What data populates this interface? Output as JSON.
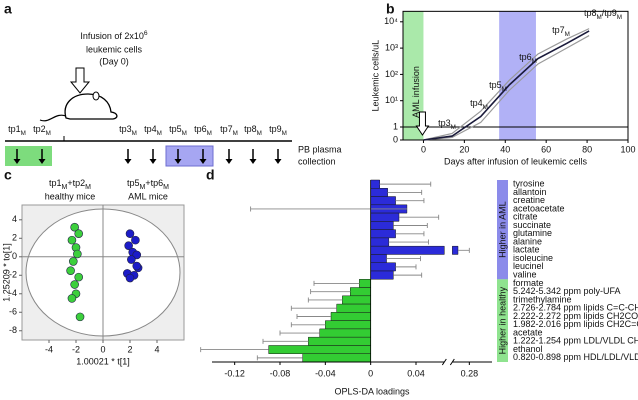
{
  "panel_labels": [
    "a",
    "b",
    "c",
    "d"
  ],
  "timeline": {
    "infusion": {
      "first_line": [
        "Infusion of 2x10",
        "6"
      ],
      "lines": [
        "leukemic cells",
        "(Day 0)"
      ]
    },
    "timepoints": [
      [
        "tp1",
        "M"
      ],
      [
        "tp2",
        "M"
      ],
      [
        "tp3",
        "M"
      ],
      [
        "tp4",
        "M"
      ],
      [
        "tp5",
        "M"
      ],
      [
        "tp6",
        "M"
      ],
      [
        "tp7",
        "M"
      ],
      [
        "tp8",
        "M"
      ],
      [
        "tp9",
        "M"
      ]
    ],
    "collection": [
      "PB plasma",
      "collection"
    ]
  },
  "chart_data": [
    {
      "type": "line",
      "xlabel": "Days after infusion of leukemic cells",
      "ylabel": "Leukemic cells/uL",
      "x": [
        0,
        14,
        28,
        42,
        56,
        70,
        81
      ],
      "series": [
        {
          "color": "#9a9a9a",
          "values": [
            0,
            0.2,
            1.5,
            25,
            250,
            1000,
            3000
          ]
        },
        {
          "color": "#9a9a9a",
          "values": [
            0,
            0.5,
            4,
            60,
            600,
            2200,
            5500
          ]
        },
        {
          "color": "#1a1a3a",
          "values": [
            0,
            0.3,
            2.5,
            40,
            400,
            1500,
            4500
          ]
        }
      ],
      "xlim": [
        -10,
        100
      ],
      "xticks": [
        0,
        20,
        40,
        60,
        80,
        100
      ],
      "ylim": [
        0,
        25000
      ],
      "yscale": "log",
      "yticks": [
        0,
        1,
        {
          "value": 10,
          "label": "10¹"
        },
        {
          "value": 100,
          "label": "10²"
        },
        {
          "value": 1000,
          "label": "10³"
        },
        {
          "value": 10000,
          "label": "10⁴"
        }
      ],
      "hline": 1,
      "bands": [
        {
          "xlim": [
            -10,
            0
          ],
          "color": "#9be59b"
        },
        {
          "xlim": [
            37,
            55
          ],
          "color": "#a3a3f5"
        }
      ],
      "arrow_label": "AML infusion",
      "annotations": [
        [
          "tp3",
          "M"
        ],
        [
          "tp4",
          "M"
        ],
        [
          "tp5",
          "M"
        ],
        [
          "tp6",
          "M"
        ],
        [
          "tp7",
          "M"
        ],
        [
          "tp8",
          "M",
          "/tp9",
          "M"
        ]
      ]
    },
    {
      "type": "scatter",
      "xlabel": "1.00021 * t[1]",
      "ylabel": "1.25209 * to[1]",
      "xlim": [
        -6,
        6
      ],
      "xticks": [
        -4,
        -2,
        0,
        2,
        4
      ],
      "ylim": [
        -9,
        5.6
      ],
      "yticks": [
        -8,
        -6,
        -4,
        -2,
        0,
        2,
        4
      ],
      "series": [
        {
          "name": "healthy mice",
          "header": [
            "tp1",
            "M",
            "+tp2",
            "M"
          ],
          "color": "#3ccf3c",
          "x": [
            -2.1,
            -1.8,
            -2.3,
            -2.0,
            -1.9,
            -2.2,
            -2.4,
            -1.8,
            -2.1,
            -2.0,
            -2.3,
            -1.7
          ],
          "values": [
            3.2,
            2.5,
            1.8,
            1.0,
            0.3,
            -0.5,
            -1.5,
            -2.2,
            -3.0,
            -4.0,
            -4.5,
            -6.5
          ]
        },
        {
          "name": "AML mice",
          "header": [
            "tp5",
            "M",
            "+tp6",
            "M"
          ],
          "color": "#1c1cc8",
          "x": [
            2.0,
            2.4,
            1.9,
            2.2,
            2.5,
            2.1,
            2.6,
            1.8,
            2.3,
            2.0,
            2.5
          ],
          "values": [
            2.5,
            1.8,
            1.2,
            0.5,
            0.2,
            -0.3,
            -1.2,
            -1.8,
            -2.0,
            -2.3,
            -1.0
          ]
        }
      ]
    },
    {
      "type": "hbar",
      "xlabel": "OPLS-DA loadings",
      "xlim": [
        -0.14,
        0.3
      ],
      "xticks": [
        -0.12,
        -0.08,
        -0.04,
        0,
        0.04,
        0.28
      ],
      "xbreak": [
        0.065,
        0.265
      ],
      "series": [
        {
          "name": "Higher in AML",
          "color": "#2b2bd9",
          "categories": [
            "tyrosine",
            "allantoin",
            "creatine",
            "acetoacetate",
            "citrate",
            "succinate",
            "glutamine",
            "alanine",
            "lactate",
            "isoleucine",
            "leucinel",
            "valine"
          ],
          "values": [
            0.008,
            0.015,
            0.022,
            0.032,
            0.025,
            0.02,
            0.022,
            0.016,
            0.27,
            0.014,
            0.022,
            0.02
          ],
          "errors": [
            0.045,
            0.03,
            0.025,
            0.055,
            0.035,
            0.03,
            0.025,
            0.035,
            0.01,
            0.03,
            0.018,
            0.025
          ]
        },
        {
          "name": "Higher in healthy",
          "color": "#33cc33",
          "categories": [
            "formate",
            "5.242-5.342 ppm poly-UFA",
            "trimethylamine",
            "2.726-2.784 ppm lipids C=C-CH2-C=C",
            "2.222-2.272 ppm lipids CH2CO",
            "1.982-2.016 ppm lipids CH2C=C",
            "acetate",
            "1.222-1.254 ppm LDL/VLDL CH2",
            "ethanol",
            "0.820-0.898 ppm HDL/LDL/VLDL CH3"
          ],
          "values": [
            -0.01,
            -0.018,
            -0.025,
            -0.03,
            -0.035,
            -0.04,
            -0.045,
            -0.055,
            -0.09,
            -0.06
          ],
          "errors": [
            0.04,
            0.035,
            0.03,
            0.04,
            0.03,
            0.03,
            0.035,
            0.04,
            0.06,
            0.04
          ]
        }
      ]
    }
  ]
}
